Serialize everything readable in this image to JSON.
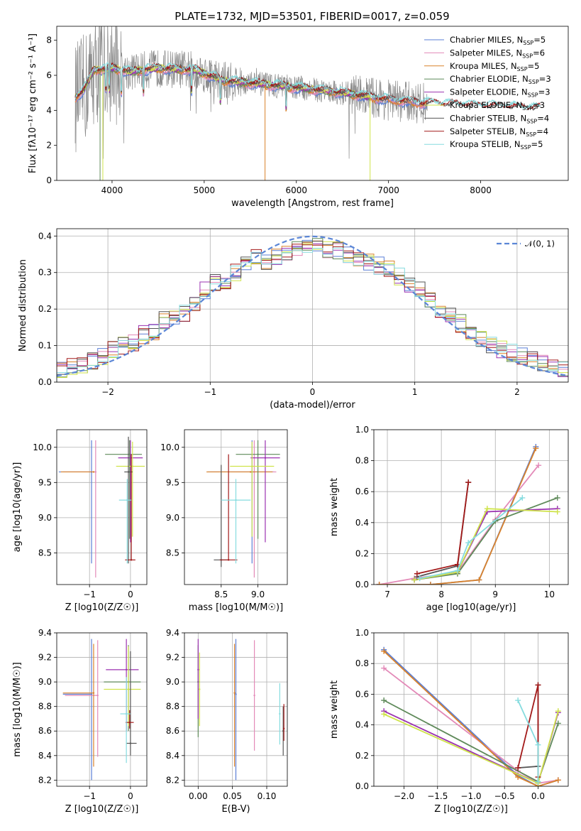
{
  "title": "PLATE=1732, MJD=53501, FIBERID=0017, z=0.059",
  "colors": {
    "Chabrier MILES": "#5b7fd6",
    "Salpeter MILES": "#e38ab8",
    "Kroupa MILES": "#d9822b",
    "Chabrier ELODIE": "#5f8a5a",
    "Salpeter ELODIE": "#9b32b0",
    "Kroupa ELODIE": "#cfe34a",
    "Chabrier STELIB": "#555555",
    "Salpeter STELIB": "#a31a1a",
    "Kroupa STELIB": "#86dcdf",
    "observed": "#8a8a8a",
    "normal": "#5b86d6"
  },
  "chart_data": [
    {
      "type": "line",
      "title": "PLATE=1732, MJD=53501, FIBERID=0017, z=0.059",
      "xlabel": "wavelength [Angstrom, rest frame]",
      "ylabel": "Flux [fλ10⁻¹⁷ erg cm⁻² s⁻¹ A⁻¹]",
      "xlim": [
        3400,
        8950
      ],
      "ylim": [
        0,
        8.8
      ],
      "xticks": [
        4000,
        5000,
        6000,
        7000,
        8000
      ],
      "yticks": [
        0,
        2,
        4,
        6,
        8
      ],
      "legend_position": "top-right",
      "legend": [
        {
          "name": "Chabrier MILES",
          "sub": "5"
        },
        {
          "name": "Salpeter MILES",
          "sub": "6"
        },
        {
          "name": "Kroupa MILES",
          "sub": "5"
        },
        {
          "name": "Chabrier ELODIE",
          "sub": "3"
        },
        {
          "name": "Salpeter ELODIE",
          "sub": "3"
        },
        {
          "name": "Kroupa ELODIE",
          "sub": "3"
        },
        {
          "name": "Chabrier STELIB",
          "sub": "4"
        },
        {
          "name": "Salpeter STELIB",
          "sub": "4"
        },
        {
          "name": "Kroupa STELIB",
          "sub": "5"
        }
      ],
      "legend_prefix": "N",
      "legend_subscript": "SSP",
      "continuum": {
        "x": [
          3600,
          3700,
          3800,
          4000,
          4200,
          4500,
          4900,
          5200,
          5600,
          6000,
          6500,
          7000,
          7400,
          7800,
          8200,
          8600
        ],
        "y": [
          4.7,
          5.2,
          6.3,
          6.4,
          6.2,
          6.4,
          6.3,
          5.7,
          5.5,
          5.3,
          5.0,
          4.6,
          4.4,
          4.3,
          4.2,
          4.1
        ]
      }
    },
    {
      "type": "bar",
      "xlabel": "(data-model)/error",
      "ylabel": "Normed distribution",
      "xlim": [
        -2.5,
        2.5
      ],
      "ylim": [
        0,
        0.42
      ],
      "xticks": [
        -2,
        -1,
        0,
        1,
        2
      ],
      "yticks": [
        0.0,
        0.1,
        0.2,
        0.3,
        0.4
      ],
      "legend_position": "top-right",
      "legend": "𝒩(0, 1)",
      "bin_width": 0.1,
      "x": [
        -2.45,
        -2.35,
        -2.25,
        -2.15,
        -2.05,
        -1.95,
        -1.85,
        -1.75,
        -1.65,
        -1.55,
        -1.45,
        -1.35,
        -1.25,
        -1.15,
        -1.05,
        -0.95,
        -0.85,
        -0.75,
        -0.65,
        -0.55,
        -0.45,
        -0.35,
        -0.25,
        -0.15,
        -0.05,
        0.05,
        0.15,
        0.25,
        0.35,
        0.45,
        0.55,
        0.65,
        0.75,
        0.85,
        0.95,
        1.05,
        1.15,
        1.25,
        1.35,
        1.45,
        1.55,
        1.65,
        1.75,
        1.85,
        1.95,
        2.05,
        2.15,
        2.25,
        2.35,
        2.45
      ],
      "values": [
        0.03,
        0.04,
        0.05,
        0.06,
        0.07,
        0.09,
        0.1,
        0.11,
        0.13,
        0.14,
        0.17,
        0.18,
        0.19,
        0.22,
        0.25,
        0.27,
        0.28,
        0.3,
        0.32,
        0.34,
        0.33,
        0.34,
        0.35,
        0.36,
        0.37,
        0.37,
        0.36,
        0.36,
        0.35,
        0.34,
        0.33,
        0.32,
        0.31,
        0.29,
        0.27,
        0.25,
        0.22,
        0.2,
        0.18,
        0.16,
        0.14,
        0.12,
        0.1,
        0.09,
        0.08,
        0.07,
        0.06,
        0.05,
        0.05,
        0.04
      ],
      "spread": 0.025
    },
    {
      "type": "scatter",
      "xlabel": "Z [log10(Z/Z☉)]",
      "ylabel": "age  [log10(age/yr)]",
      "xlim": [
        -1.8,
        0.4
      ],
      "ylim": [
        8.05,
        10.25
      ],
      "xticks": [
        -1,
        0
      ],
      "yticks": [
        8.5,
        9.0,
        9.5,
        10.0
      ],
      "points": [
        {
          "series": "Chabrier MILES",
          "x": -0.95,
          "y": 9.65,
          "xerr": [
            0.8,
            0.0
          ],
          "yerr": [
            1.3,
            0.45
          ]
        },
        {
          "series": "Salpeter MILES",
          "x": -0.85,
          "y": 9.65,
          "xerr": [
            0.8,
            0.0
          ],
          "yerr": [
            1.5,
            0.45
          ]
        },
        {
          "series": "Kroupa MILES",
          "x": -0.9,
          "y": 9.65,
          "xerr": [
            0.8,
            0.0
          ],
          "yerr": [
            0.0,
            0.0
          ]
        },
        {
          "series": "Chabrier ELODIE",
          "x": -0.02,
          "y": 9.9,
          "xerr": [
            0.6,
            0.3
          ],
          "yerr": [
            1.2,
            0.2
          ]
        },
        {
          "series": "Salpeter ELODIE",
          "x": 0.0,
          "y": 9.85,
          "xerr": [
            0.3,
            0.3
          ],
          "yerr": [
            1.2,
            0.25
          ]
        },
        {
          "series": "Kroupa ELODIE",
          "x": 0.05,
          "y": 9.73,
          "xerr": [
            0.4,
            0.3
          ],
          "yerr": [
            1.0,
            0.35
          ]
        },
        {
          "series": "Chabrier STELIB",
          "x": -0.05,
          "y": 9.65,
          "xerr": [
            0.1,
            0.1
          ],
          "yerr": [
            1.3,
            0.5
          ]
        },
        {
          "series": "Salpeter STELIB",
          "x": 0.02,
          "y": 8.4,
          "xerr": [
            0.15,
            0.1
          ],
          "yerr": [
            0.0,
            1.5
          ]
        },
        {
          "series": "Kroupa STELIB",
          "x": -0.08,
          "y": 9.25,
          "xerr": [
            0.2,
            0.1
          ],
          "yerr": [
            0.9,
            0.3
          ]
        }
      ]
    },
    {
      "type": "scatter",
      "xlabel": "mass [log10(M/M☉)]",
      "ylabel": "",
      "xlim": [
        8.0,
        9.4
      ],
      "ylim": [
        8.05,
        10.25
      ],
      "xticks": [
        8.5,
        9.0
      ],
      "yticks": [
        8.5,
        9.0,
        9.5,
        10.0
      ],
      "points": [
        {
          "series": "Chabrier MILES",
          "x": 8.92,
          "y": 9.65,
          "xerr": [
            0.6,
            0.3
          ],
          "yerr": [
            1.3,
            0.45
          ]
        },
        {
          "series": "Salpeter MILES",
          "x": 8.95,
          "y": 9.65,
          "xerr": [
            0.6,
            0.3
          ],
          "yerr": [
            1.5,
            0.45
          ]
        },
        {
          "series": "Kroupa MILES",
          "x": 8.9,
          "y": 9.65,
          "xerr": [
            0.6,
            0.3
          ],
          "yerr": [
            0.0,
            0.0
          ]
        },
        {
          "series": "Chabrier ELODIE",
          "x": 9.0,
          "y": 9.9,
          "xerr": [
            0.3,
            0.3
          ],
          "yerr": [
            1.2,
            0.2
          ]
        },
        {
          "series": "Salpeter ELODIE",
          "x": 9.1,
          "y": 9.85,
          "xerr": [
            0.2,
            0.2
          ],
          "yerr": [
            1.2,
            0.25
          ]
        },
        {
          "series": "Kroupa ELODIE",
          "x": 8.92,
          "y": 9.73,
          "xerr": [
            0.3,
            0.3
          ],
          "yerr": [
            1.0,
            0.35
          ]
        },
        {
          "series": "Chabrier STELIB",
          "x": 8.5,
          "y": 8.4,
          "xerr": [
            0.1,
            0.1
          ],
          "yerr": [
            0.1,
            1.35
          ]
        },
        {
          "series": "Salpeter STELIB",
          "x": 8.6,
          "y": 8.4,
          "xerr": [
            0.12,
            0.12
          ],
          "yerr": [
            0.0,
            1.5
          ]
        },
        {
          "series": "Kroupa STELIB",
          "x": 8.7,
          "y": 9.25,
          "xerr": [
            0.2,
            0.2
          ],
          "yerr": [
            0.9,
            0.3
          ]
        }
      ]
    },
    {
      "type": "line",
      "xlabel": "age  [log10(age/yr)]",
      "ylabel": "mass weight",
      "xlim": [
        6.75,
        10.35
      ],
      "ylim": [
        0,
        1.0
      ],
      "xticks": [
        7,
        8,
        9,
        10
      ],
      "yticks": [
        0.0,
        0.2,
        0.4,
        0.6,
        0.8,
        1.0
      ],
      "series": [
        {
          "name": "Chabrier MILES",
          "x": [
            6.85,
            7.8,
            8.7,
            9.75
          ],
          "y": [
            0.0,
            0.0,
            0.03,
            0.89
          ]
        },
        {
          "name": "Salpeter MILES",
          "x": [
            6.85,
            7.5,
            8.3,
            9.0,
            9.8
          ],
          "y": [
            0.0,
            0.04,
            0.08,
            0.42,
            0.77
          ]
        },
        {
          "name": "Kroupa MILES",
          "x": [
            6.85,
            7.8,
            8.7,
            9.75
          ],
          "y": [
            0.0,
            0.0,
            0.03,
            0.88
          ]
        },
        {
          "name": "Chabrier ELODIE",
          "x": [
            7.5,
            8.3,
            9.0,
            10.15
          ],
          "y": [
            0.03,
            0.07,
            0.41,
            0.56
          ]
        },
        {
          "name": "Salpeter ELODIE",
          "x": [
            7.5,
            8.3,
            8.85,
            10.15
          ],
          "y": [
            0.03,
            0.08,
            0.47,
            0.49
          ]
        },
        {
          "name": "Kroupa ELODIE",
          "x": [
            7.5,
            8.3,
            8.85,
            10.15
          ],
          "y": [
            0.03,
            0.08,
            0.49,
            0.47
          ]
        },
        {
          "name": "Chabrier STELIB",
          "x": [
            7.55,
            8.3,
            8.5
          ],
          "y": [
            0.05,
            0.12,
            0.66
          ]
        },
        {
          "name": "Salpeter STELIB",
          "x": [
            7.55,
            8.3,
            8.5
          ],
          "y": [
            0.07,
            0.13,
            0.66
          ]
        },
        {
          "name": "Kroupa STELIB",
          "x": [
            7.6,
            8.3,
            8.5,
            9.5
          ],
          "y": [
            0.04,
            0.09,
            0.27,
            0.56
          ]
        }
      ]
    },
    {
      "type": "scatter",
      "xlabel": "Z [log10(Z/Z☉)]",
      "ylabel": "mass [log10(M/M☉)]",
      "xlim": [
        -1.8,
        0.4
      ],
      "ylim": [
        8.15,
        9.4
      ],
      "xticks": [
        -1,
        0
      ],
      "yticks": [
        8.2,
        8.4,
        8.6,
        8.8,
        9.0,
        9.2,
        9.4
      ],
      "points": [
        {
          "series": "Chabrier MILES",
          "x": -0.95,
          "y": 8.9,
          "xerr": [
            0.7,
            0.0
          ],
          "yerr": [
            0.7,
            0.45
          ]
        },
        {
          "series": "Salpeter MILES",
          "x": -0.8,
          "y": 8.89,
          "xerr": [
            0.8,
            0.0
          ],
          "yerr": [
            0.5,
            0.45
          ]
        },
        {
          "series": "Kroupa MILES",
          "x": -0.9,
          "y": 8.91,
          "xerr": [
            0.75,
            0.0
          ],
          "yerr": [
            0.6,
            0.4
          ]
        },
        {
          "series": "Chabrier ELODIE",
          "x": -0.05,
          "y": 9.0,
          "xerr": [
            0.6,
            0.3
          ],
          "yerr": [
            0.4,
            0.3
          ]
        },
        {
          "series": "Salpeter ELODIE",
          "x": -0.1,
          "y": 9.1,
          "xerr": [
            0.5,
            0.3
          ],
          "yerr": [
            0.5,
            0.25
          ]
        },
        {
          "series": "Kroupa ELODIE",
          "x": -0.05,
          "y": 8.94,
          "xerr": [
            0.6,
            0.3
          ],
          "yerr": [
            0.3,
            0.35
          ]
        },
        {
          "series": "Chabrier STELIB",
          "x": 0.0,
          "y": 8.5,
          "xerr": [
            0.1,
            0.15
          ],
          "yerr": [
            0.1,
            0.75
          ]
        },
        {
          "series": "Salpeter STELIB",
          "x": -0.02,
          "y": 8.67,
          "xerr": [
            0.1,
            0.1
          ],
          "yerr": [
            0.05,
            0.1
          ]
        },
        {
          "series": "Kroupa STELIB",
          "x": -0.1,
          "y": 8.74,
          "xerr": [
            0.15,
            0.1
          ],
          "yerr": [
            0.4,
            0.3
          ]
        }
      ]
    },
    {
      "type": "scatter",
      "xlabel": "E(B-V)",
      "ylabel": "",
      "xlim": [
        -0.02,
        0.13
      ],
      "ylim": [
        8.15,
        9.4
      ],
      "xticks": [
        0.0,
        0.05,
        0.1
      ],
      "yticks": [
        8.2,
        8.4,
        8.6,
        8.8,
        9.0,
        9.2,
        9.4
      ],
      "points": [
        {
          "series": "Chabrier MILES",
          "x": 0.055,
          "y": 8.9,
          "xerr": [
            0,
            0
          ],
          "yerr": [
            0.7,
            0.45
          ]
        },
        {
          "series": "Salpeter MILES",
          "x": 0.082,
          "y": 8.89,
          "xerr": [
            0,
            0
          ],
          "yerr": [
            0.45,
            0.45
          ]
        },
        {
          "series": "Kroupa MILES",
          "x": 0.053,
          "y": 8.91,
          "xerr": [
            0,
            0
          ],
          "yerr": [
            0.6,
            0.4
          ]
        },
        {
          "series": "Chabrier ELODIE",
          "x": 0.0,
          "y": 9.0,
          "xerr": [
            0,
            0
          ],
          "yerr": [
            0.45,
            0.3
          ]
        },
        {
          "series": "Salpeter ELODIE",
          "x": 0.0,
          "y": 9.1,
          "xerr": [
            0,
            0
          ],
          "yerr": [
            0.4,
            0.25
          ]
        },
        {
          "series": "Kroupa ELODIE",
          "x": 0.002,
          "y": 8.94,
          "xerr": [
            0,
            0
          ],
          "yerr": [
            0.3,
            0.3
          ]
        },
        {
          "series": "Chabrier STELIB",
          "x": 0.124,
          "y": 8.6,
          "xerr": [
            0,
            0
          ],
          "yerr": [
            0.2,
            0.2
          ]
        },
        {
          "series": "Salpeter STELIB",
          "x": 0.125,
          "y": 8.62,
          "xerr": [
            0,
            0
          ],
          "yerr": [
            0.1,
            0.2
          ]
        },
        {
          "series": "Kroupa STELIB",
          "x": 0.119,
          "y": 8.74,
          "xerr": [
            0,
            0
          ],
          "yerr": [
            0.25,
            0.25
          ]
        }
      ]
    },
    {
      "type": "line",
      "xlabel": "Z [log10(Z/Z☉)]",
      "ylabel": "mass weight",
      "xlim": [
        -2.45,
        0.45
      ],
      "ylim": [
        0,
        1.0
      ],
      "xticks": [
        -2.0,
        -1.5,
        -1.0,
        -0.5,
        0.0
      ],
      "yticks": [
        0.0,
        0.2,
        0.4,
        0.6,
        0.8,
        1.0
      ],
      "series": [
        {
          "name": "Chabrier MILES",
          "x": [
            -2.3,
            -0.3,
            0.0,
            0.3
          ],
          "y": [
            0.89,
            0.07,
            0.0,
            0.04
          ]
        },
        {
          "name": "Salpeter MILES",
          "x": [
            -2.3,
            -0.3,
            0.0,
            0.3
          ],
          "y": [
            0.77,
            0.1,
            0.02,
            0.04
          ]
        },
        {
          "name": "Kroupa MILES",
          "x": [
            -2.3,
            -0.3,
            0.0,
            0.3
          ],
          "y": [
            0.88,
            0.06,
            0.0,
            0.04
          ]
        },
        {
          "name": "Chabrier ELODIE",
          "x": [
            -2.3,
            0.0,
            0.3
          ],
          "y": [
            0.56,
            0.03,
            0.41
          ]
        },
        {
          "name": "Salpeter ELODIE",
          "x": [
            -2.3,
            0.0,
            0.3
          ],
          "y": [
            0.49,
            0.02,
            0.48
          ]
        },
        {
          "name": "Kroupa ELODIE",
          "x": [
            -2.3,
            0.0,
            0.3
          ],
          "y": [
            0.47,
            0.02,
            0.49
          ]
        },
        {
          "name": "Chabrier STELIB",
          "x": [
            -0.3,
            0.0,
            0.0
          ],
          "y": [
            0.12,
            0.13,
            0.66
          ]
        },
        {
          "name": "Salpeter STELIB",
          "x": [
            -0.3,
            0.0,
            0.0
          ],
          "y": [
            0.12,
            0.66,
            0.06
          ]
        },
        {
          "name": "Kroupa STELIB",
          "x": [
            -0.3,
            0.0,
            0.0
          ],
          "y": [
            0.56,
            0.27,
            0.03
          ]
        }
      ]
    }
  ]
}
